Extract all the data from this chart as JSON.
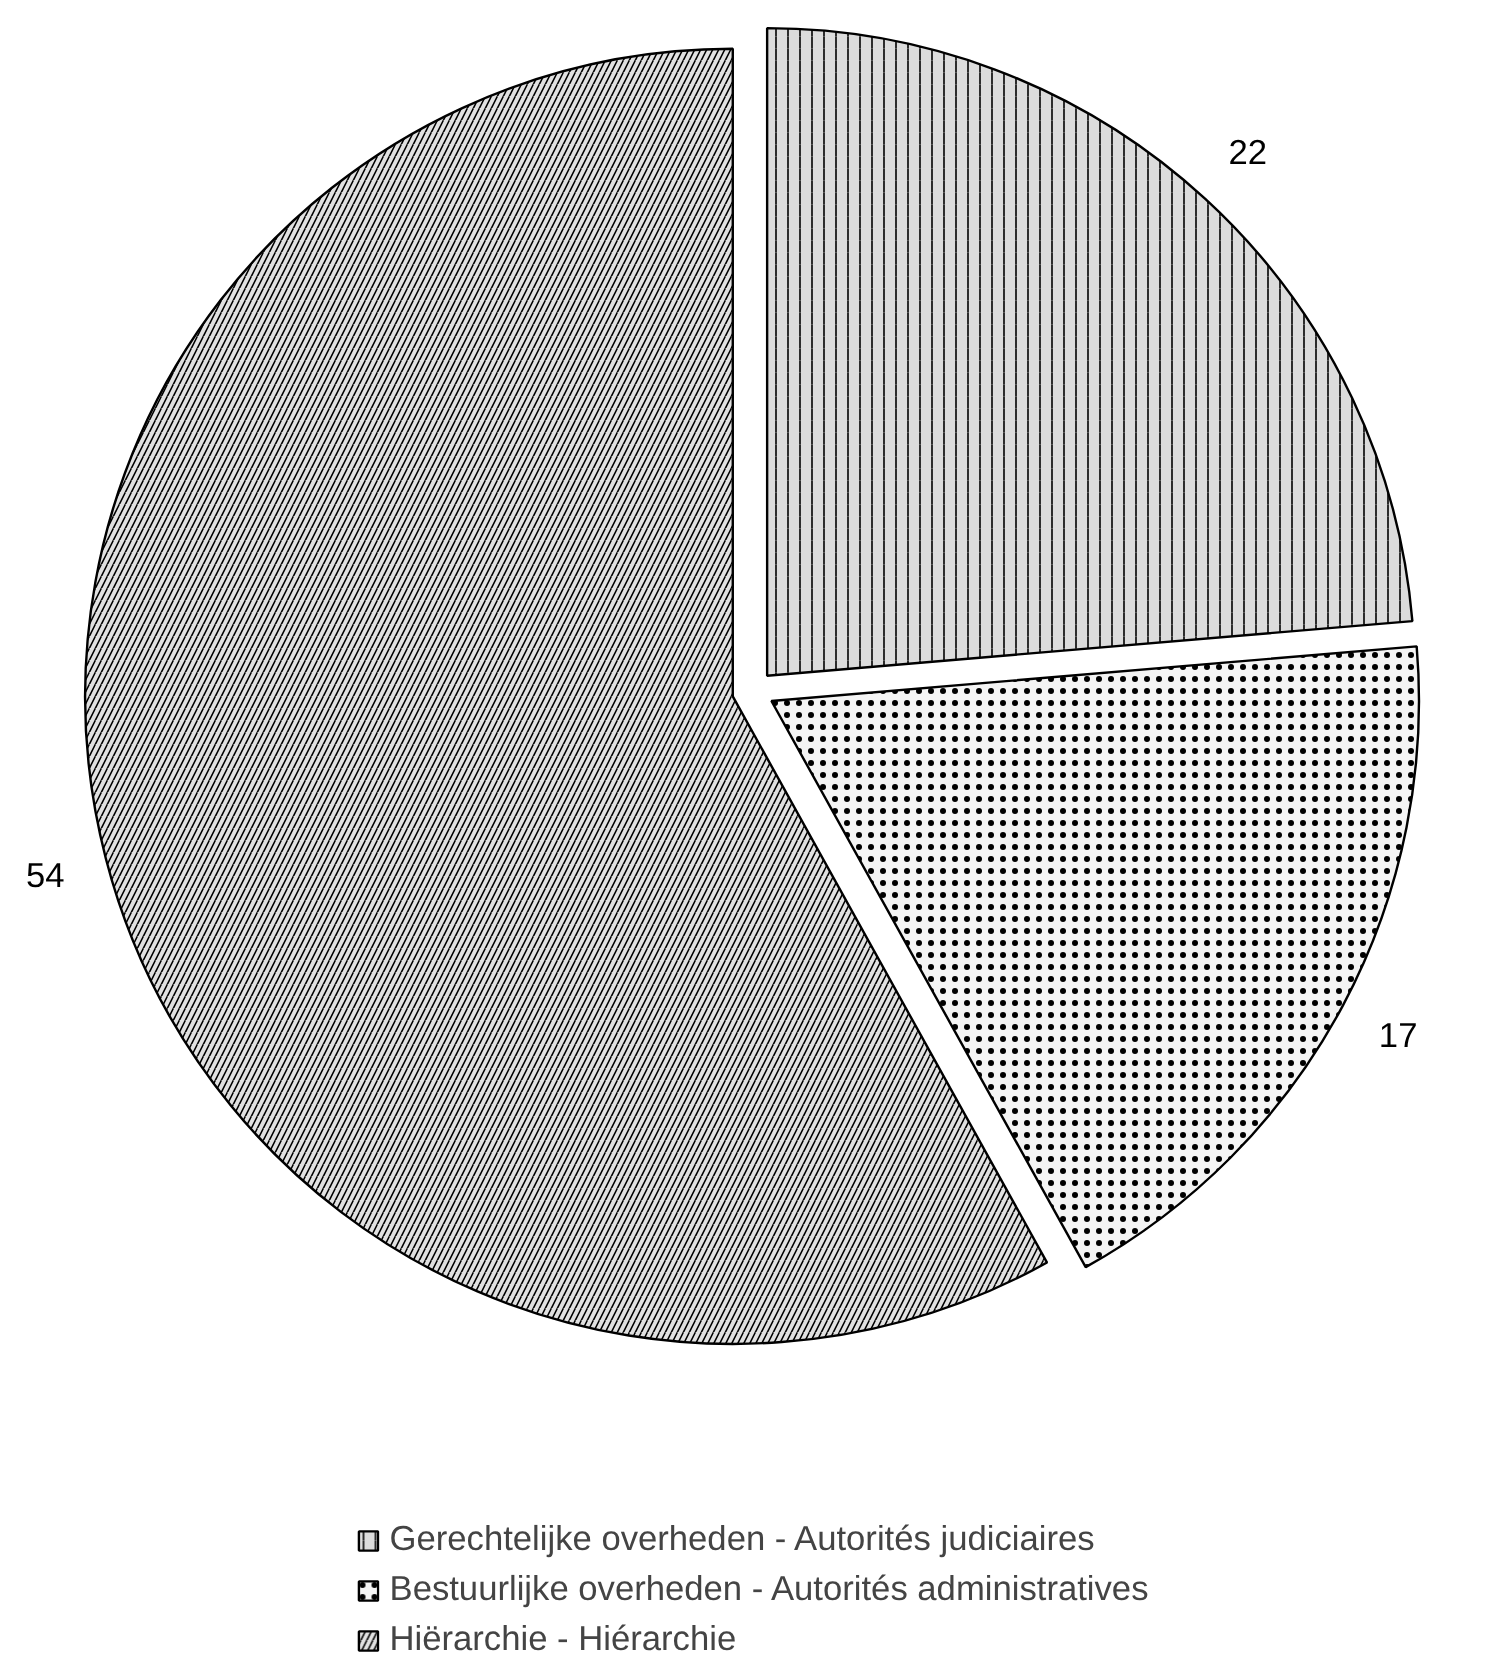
{
  "chart_data": {
    "type": "pie",
    "categories": [
      "Gerechtelijke overheden - Autorités judiciaires",
      "Bestuurlijke overheden - Autorités administratives",
      "Hiërarchie - Hiérarchie"
    ],
    "values": [
      22,
      17,
      54
    ],
    "colors": [
      "#9a9a9a",
      "#e0e0e0",
      "#a8a8a8"
    ],
    "data_labels": true,
    "legend": "bottom"
  }
}
